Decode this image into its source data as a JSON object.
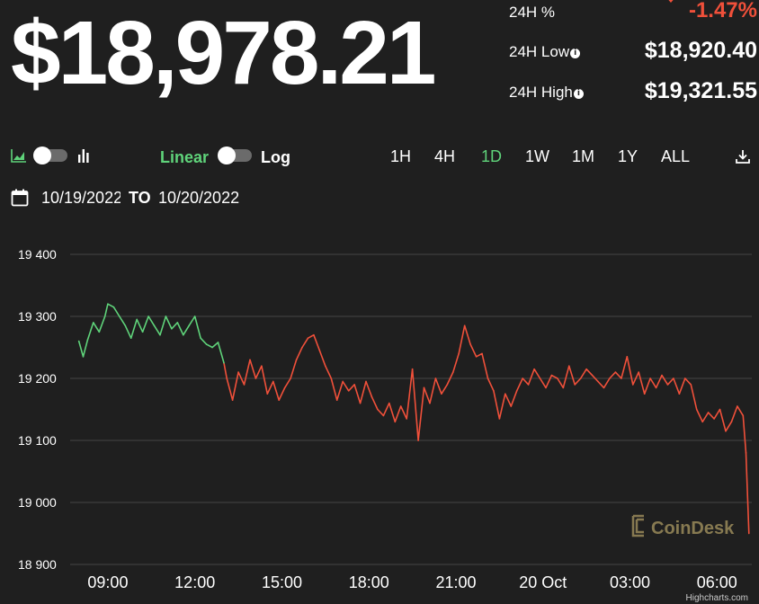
{
  "price": "$18,978.21",
  "stats": {
    "change_label": "24H %",
    "change_value": "-1.47%",
    "low_label": "24H Low",
    "low_value": "$18,920.40",
    "high_label": "24H High",
    "high_value": "$19,321.55"
  },
  "controls": {
    "linear_label": "Linear",
    "log_label": "Log",
    "ranges": [
      "1H",
      "4H",
      "1D",
      "1W",
      "1M",
      "1Y",
      "ALL"
    ],
    "active_range": "1D"
  },
  "date_range": {
    "from": "10/19/2022",
    "to_label": "TO",
    "to": "10/20/2022"
  },
  "watermark": "CoinDesk",
  "credit": "Highcharts.com",
  "colors": {
    "background": "#1f1f1f",
    "up": "#5fd37a",
    "down": "#f0503a",
    "grid": "#444444"
  },
  "chart_data": {
    "type": "line",
    "ylim": [
      18900,
      19400
    ],
    "yticks": [
      {
        "v": 18900,
        "label": "18 900"
      },
      {
        "v": 19000,
        "label": "19 000"
      },
      {
        "v": 19100,
        "label": "19 100"
      },
      {
        "v": 19200,
        "label": "19 200"
      },
      {
        "v": 19300,
        "label": "19 300"
      },
      {
        "v": 19400,
        "label": "19 400"
      }
    ],
    "xlim": [
      7.7,
      31.2
    ],
    "xticks": [
      {
        "v": 9,
        "label": "09:00"
      },
      {
        "v": 12,
        "label": "12:00"
      },
      {
        "v": 15,
        "label": "15:00"
      },
      {
        "v": 18,
        "label": "18:00"
      },
      {
        "v": 21,
        "label": "21:00"
      },
      {
        "v": 24,
        "label": "20 Oct"
      },
      {
        "v": 27,
        "label": "03:00"
      },
      {
        "v": 30,
        "label": "06:00"
      }
    ],
    "x": [
      8.0,
      8.15,
      8.3,
      8.5,
      8.7,
      8.9,
      9.0,
      9.2,
      9.4,
      9.6,
      9.8,
      10.0,
      10.2,
      10.4,
      10.6,
      10.8,
      11.0,
      11.2,
      11.4,
      11.6,
      11.8,
      12.0,
      12.2,
      12.4,
      12.6,
      12.8,
      13.0,
      13.1,
      13.3,
      13.5,
      13.7,
      13.9,
      14.1,
      14.3,
      14.5,
      14.7,
      14.9,
      15.1,
      15.3,
      15.5,
      15.7,
      15.9,
      16.1,
      16.3,
      16.5,
      16.7,
      16.9,
      17.1,
      17.3,
      17.5,
      17.7,
      17.9,
      18.1,
      18.3,
      18.5,
      18.7,
      18.9,
      19.1,
      19.3,
      19.5,
      19.7,
      19.9,
      20.1,
      20.3,
      20.5,
      20.7,
      20.9,
      21.1,
      21.3,
      21.5,
      21.7,
      21.9,
      22.1,
      22.3,
      22.5,
      22.7,
      22.9,
      23.1,
      23.3,
      23.5,
      23.7,
      23.9,
      24.1,
      24.3,
      24.5,
      24.7,
      24.9,
      25.1,
      25.3,
      25.5,
      25.7,
      25.9,
      26.1,
      26.3,
      26.5,
      26.7,
      26.9,
      27.1,
      27.3,
      27.5,
      27.7,
      27.9,
      28.1,
      28.3,
      28.5,
      28.7,
      28.9,
      29.1,
      29.3,
      29.5,
      29.7,
      29.9,
      30.1,
      30.3,
      30.5,
      30.7,
      30.9,
      31.0,
      31.1
    ],
    "values": [
      19260,
      19235,
      19262,
      19290,
      19275,
      19300,
      19320,
      19315,
      19300,
      19285,
      19265,
      19295,
      19275,
      19300,
      19285,
      19270,
      19300,
      19280,
      19290,
      19270,
      19285,
      19300,
      19265,
      19255,
      19250,
      19258,
      19225,
      19200,
      19165,
      19210,
      19190,
      19230,
      19200,
      19220,
      19175,
      19195,
      19165,
      19185,
      19200,
      19230,
      19250,
      19265,
      19270,
      19245,
      19220,
      19200,
      19165,
      19195,
      19180,
      19190,
      19160,
      19195,
      19170,
      19150,
      19140,
      19160,
      19130,
      19155,
      19135,
      19215,
      19100,
      19185,
      19160,
      19200,
      19175,
      19190,
      19210,
      19240,
      19285,
      19255,
      19235,
      19240,
      19200,
      19180,
      19135,
      19175,
      19155,
      19180,
      19200,
      19190,
      19215,
      19200,
      19185,
      19205,
      19200,
      19185,
      19220,
      19190,
      19200,
      19215,
      19205,
      19195,
      19185,
      19200,
      19210,
      19200,
      19235,
      19190,
      19210,
      19175,
      19200,
      19185,
      19205,
      19190,
      19200,
      19175,
      19200,
      19190,
      19150,
      19130,
      19145,
      19135,
      19150,
      19115,
      19130,
      19155,
      19140,
      19080,
      18950
    ],
    "up_until_x": 13.0
  }
}
